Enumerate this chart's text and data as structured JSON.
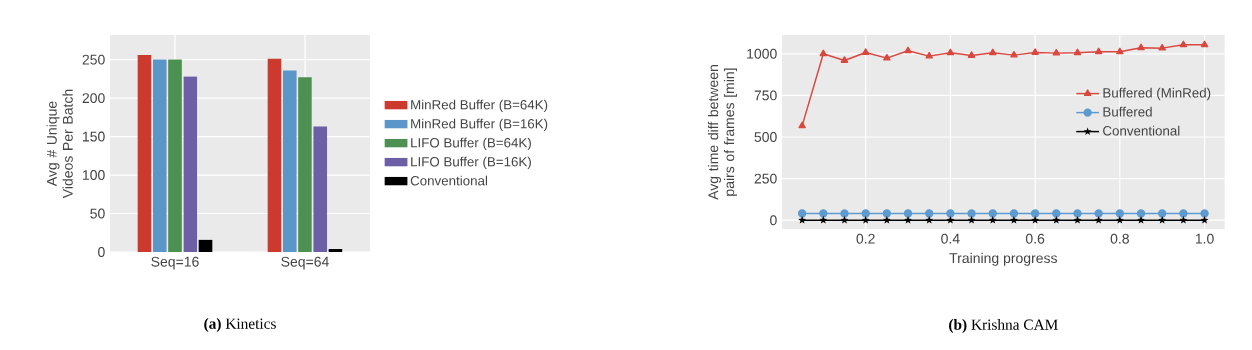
{
  "chart_data": [
    {
      "type": "bar",
      "title": "**(a)** Kinetics",
      "ylabel": "Avg # Unique Videos Per Batch",
      "categories": [
        "Seq=16",
        "Seq=64"
      ],
      "ylim": [
        0,
        282
      ],
      "yticks": [
        0,
        50,
        100,
        150,
        200,
        250
      ],
      "grid": true,
      "legend": "right",
      "series": [
        {
          "name": "MinRed Buffer (B=64K)",
          "color": "#cc3a2e",
          "values": [
            256,
            251
          ]
        },
        {
          "name": "MinRed Buffer (B=16K)",
          "color": "#5a96c8",
          "values": [
            250,
            236
          ]
        },
        {
          "name": "LIFO Buffer (B=64K)",
          "color": "#4c9152",
          "values": [
            250,
            227
          ]
        },
        {
          "name": "LIFO Buffer (B=16K)",
          "color": "#6d5fa6",
          "values": [
            228,
            163
          ]
        },
        {
          "name": "Conventional",
          "color": "#000000",
          "values": [
            16,
            4
          ]
        }
      ]
    },
    {
      "type": "line",
      "title": "**(b)** Krishna CAM",
      "xlabel": "Training progress",
      "ylabel": "Avg time diff between pairs of frames [min]",
      "xlim": [
        0.0025,
        1.0475
      ],
      "ylim": [
        -53,
        1113
      ],
      "xticks": [
        0.2,
        0.4,
        0.6,
        0.8,
        {
          "value": 1,
          "label": "1.0"
        }
      ],
      "yticks": [
        0,
        250,
        500,
        750,
        1000
      ],
      "grid": true,
      "legend": "center right",
      "line_style": "solid",
      "x": [
        0.05,
        0.1,
        0.15,
        0.2,
        0.25,
        0.3,
        0.35,
        0.4,
        0.45,
        0.5,
        0.55,
        0.6,
        0.65,
        0.7,
        0.75,
        0.8,
        0.85,
        0.9,
        0.95,
        1.0
      ],
      "series": [
        {
          "name": "Buffered (MinRed)",
          "color": "#d9473e",
          "marker": "triangle",
          "values": [
            567,
            1000,
            960,
            1008,
            974,
            1018,
            986,
            1006,
            990,
            1006,
            992,
            1008,
            1004,
            1006,
            1012,
            1012,
            1036,
            1034,
            1054,
            1054
          ]
        },
        {
          "name": "Buffered",
          "color": "#5d9ad0",
          "marker": "circle",
          "values": [
            40,
            40,
            40,
            40,
            40,
            40,
            40,
            40,
            40,
            40,
            40,
            40,
            40,
            40,
            40,
            40,
            40,
            40,
            40,
            40
          ]
        },
        {
          "name": "Conventional",
          "color": "#000000",
          "marker": "star",
          "values": [
            0,
            0,
            0,
            0,
            0,
            0,
            0,
            0,
            0,
            0,
            0,
            0,
            0,
            0,
            0,
            0,
            0,
            0,
            0,
            0
          ]
        }
      ]
    }
  ]
}
